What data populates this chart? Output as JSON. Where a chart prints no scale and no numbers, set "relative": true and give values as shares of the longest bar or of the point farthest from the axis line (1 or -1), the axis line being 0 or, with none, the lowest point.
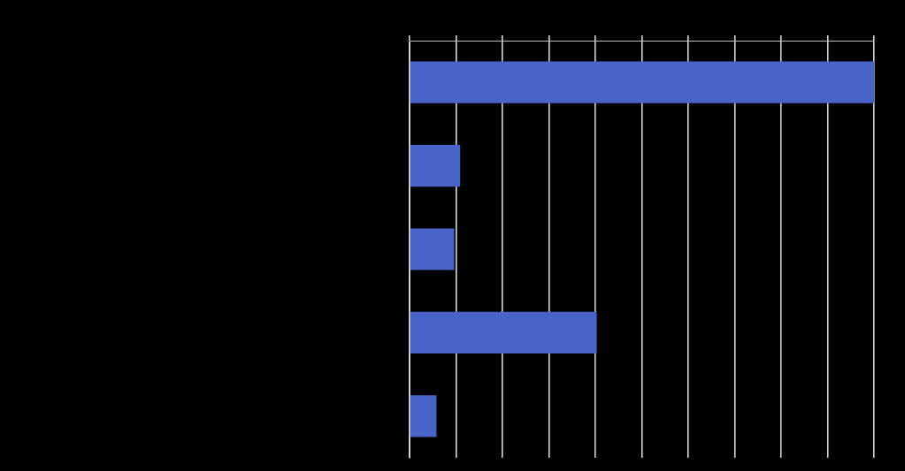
{
  "chart_data": {
    "type": "bar",
    "orientation": "horizontal",
    "relative": true,
    "categories": [
      null,
      null,
      null,
      null,
      null
    ],
    "values": [
      1,
      0.109,
      0.096,
      0.403,
      0.058
    ],
    "color": "#4864c8",
    "grid": "x"
  }
}
